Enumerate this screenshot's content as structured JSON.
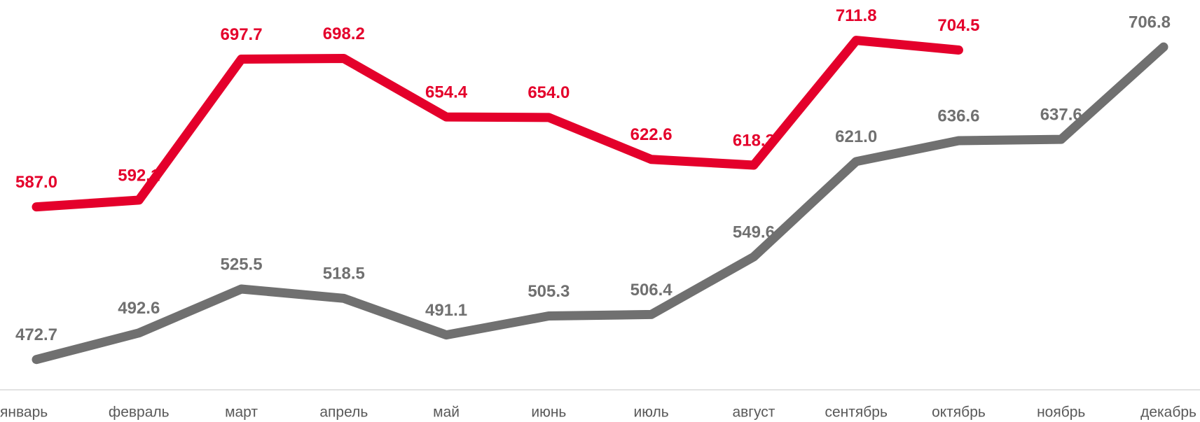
{
  "chart_data": {
    "type": "line",
    "categories": [
      "январь",
      "февраль",
      "март",
      "апрель",
      "май",
      "июнь",
      "июль",
      "август",
      "сентябрь",
      "октябрь",
      "ноябрь",
      "декабрь"
    ],
    "ylim": [
      450,
      742
    ],
    "series": [
      {
        "color": "#e4002b",
        "values": [
          587.0,
          592.1,
          697.7,
          698.2,
          654.4,
          654.0,
          622.6,
          618.3,
          711.8,
          704.5,
          null,
          null
        ],
        "value_labels": [
          "587.0",
          "592.1",
          "697.7",
          "698.2",
          "654.4",
          "654.0",
          "622.6",
          "618.3",
          "711.8",
          "704.5",
          null,
          null
        ]
      },
      {
        "color": "#707070",
        "values": [
          472.7,
          492.6,
          525.5,
          518.5,
          491.1,
          505.3,
          506.4,
          549.6,
          621.0,
          636.6,
          637.6,
          706.8
        ],
        "value_labels": [
          "472.7",
          "492.6",
          "525.5",
          "518.5",
          "491.1",
          "505.3",
          "506.4",
          "549.6",
          "621.0",
          "636.6",
          "637.6",
          "706.8"
        ]
      }
    ]
  }
}
